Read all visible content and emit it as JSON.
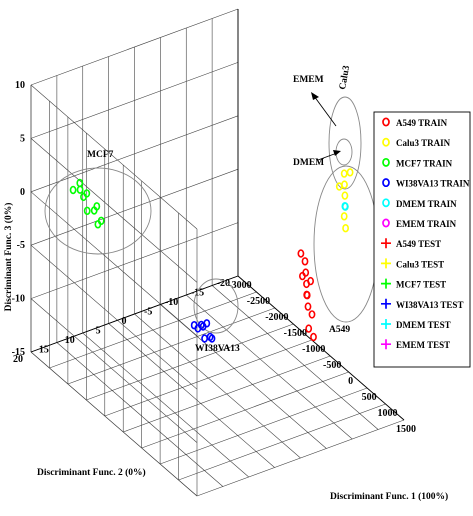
{
  "chart_data": {
    "type": "scatter",
    "title": "",
    "xlabel": "Discriminant Func. 1 (100%)",
    "ylabel": "Discriminant Func. 2 (0%)",
    "zlabel": "Discriminant Func. 3 (0%)",
    "x_ticks": [
      "-3000",
      "-2500",
      "-2000",
      "-1500",
      "-1000",
      "-500",
      "0",
      "500",
      "1000",
      "1500"
    ],
    "y_ticks": [
      "20",
      "15",
      "10",
      "5",
      "0",
      "-5",
      "-10",
      "-15",
      "-20"
    ],
    "z_ticks": [
      "-15",
      "-10",
      "-5",
      "0",
      "5",
      "10"
    ],
    "xlim": [
      -3000,
      1500
    ],
    "ylim": [
      -20,
      20
    ],
    "zlim": [
      -15,
      10
    ],
    "grid": true,
    "legend_position": "right",
    "legend": [
      {
        "label": "A549 TRAIN",
        "marker": "circle",
        "color": "#ff0000"
      },
      {
        "label": "Calu3 TRAIN",
        "marker": "circle",
        "color": "#ffff00"
      },
      {
        "label": "MCF7 TRAIN",
        "marker": "circle",
        "color": "#00ff00"
      },
      {
        "label": "WI38VA13 TRAIN",
        "marker": "circle",
        "color": "#0000ff"
      },
      {
        "label": "DMEM TRAIN",
        "marker": "circle",
        "color": "#00ffff"
      },
      {
        "label": "EMEM TRAIN",
        "marker": "circle",
        "color": "#ff00ff"
      },
      {
        "label": "A549 TEST",
        "marker": "plus",
        "color": "#ff0000"
      },
      {
        "label": "Calu3 TEST",
        "marker": "plus",
        "color": "#ffff00"
      },
      {
        "label": "MCF7 TEST",
        "marker": "plus",
        "color": "#00ff00"
      },
      {
        "label": "WI38VA13 TEST",
        "marker": "plus",
        "color": "#0000ff"
      },
      {
        "label": "DMEM TEST",
        "marker": "plus",
        "color": "#00ffff"
      },
      {
        "label": "EMEM TEST",
        "marker": "plus",
        "color": "#ff00ff"
      }
    ],
    "annotations": [
      "MCF7",
      "WI38VA13",
      "A549",
      "Calu3",
      "EMEM",
      "DMEM"
    ],
    "series": [
      {
        "name": "MCF7",
        "color": "#00ff00",
        "points": [
          [
            -2800,
            12,
            0
          ],
          [
            -2750,
            11,
            -1
          ],
          [
            -2700,
            12,
            -1
          ],
          [
            -2650,
            13,
            0
          ],
          [
            -2600,
            12,
            -2
          ],
          [
            -2550,
            11,
            -2
          ],
          [
            -2500,
            10,
            -3
          ],
          [
            -2450,
            11,
            -3
          ],
          [
            -2700,
            14,
            0
          ],
          [
            -2620,
            10,
            -2
          ]
        ]
      },
      {
        "name": "WI38VA13",
        "color": "#0000ff",
        "points": [
          [
            -1100,
            2,
            -10
          ],
          [
            -1050,
            1,
            -10
          ],
          [
            -1000,
            1,
            -10
          ],
          [
            -950,
            0,
            -11
          ],
          [
            -900,
            0,
            -11
          ],
          [
            -1000,
            2,
            -10
          ],
          [
            -960,
            1,
            -11
          ],
          [
            -1040,
            0,
            -10
          ]
        ]
      },
      {
        "name": "A549",
        "color": "#ff0000",
        "points": [
          [
            500,
            -8,
            -1
          ],
          [
            520,
            -8,
            -2
          ],
          [
            540,
            -8,
            -3
          ],
          [
            560,
            -8,
            -4
          ],
          [
            580,
            -8,
            -5
          ],
          [
            510,
            -9,
            -3
          ],
          [
            550,
            -9,
            -6
          ],
          [
            570,
            -7,
            -2
          ],
          [
            600,
            -8,
            -7
          ],
          [
            530,
            -7,
            0
          ],
          [
            590,
            -9,
            -8
          ],
          [
            545,
            -8,
            -4
          ]
        ]
      },
      {
        "name": "Calu3",
        "color": "#ffff00",
        "points": [
          [
            1000,
            -12,
            8
          ],
          [
            1010,
            -12,
            7
          ],
          [
            1020,
            -12,
            6
          ],
          [
            1030,
            -12,
            5
          ],
          [
            1000,
            -12,
            4
          ],
          [
            1020,
            -13,
            8
          ],
          [
            1040,
            -12,
            3
          ],
          [
            1010,
            -11,
            7
          ]
        ]
      },
      {
        "name": "DMEM",
        "color": "#00ffff",
        "points": [
          [
            1020,
            -12,
            5
          ],
          [
            1030,
            -12,
            5
          ]
        ]
      }
    ]
  }
}
